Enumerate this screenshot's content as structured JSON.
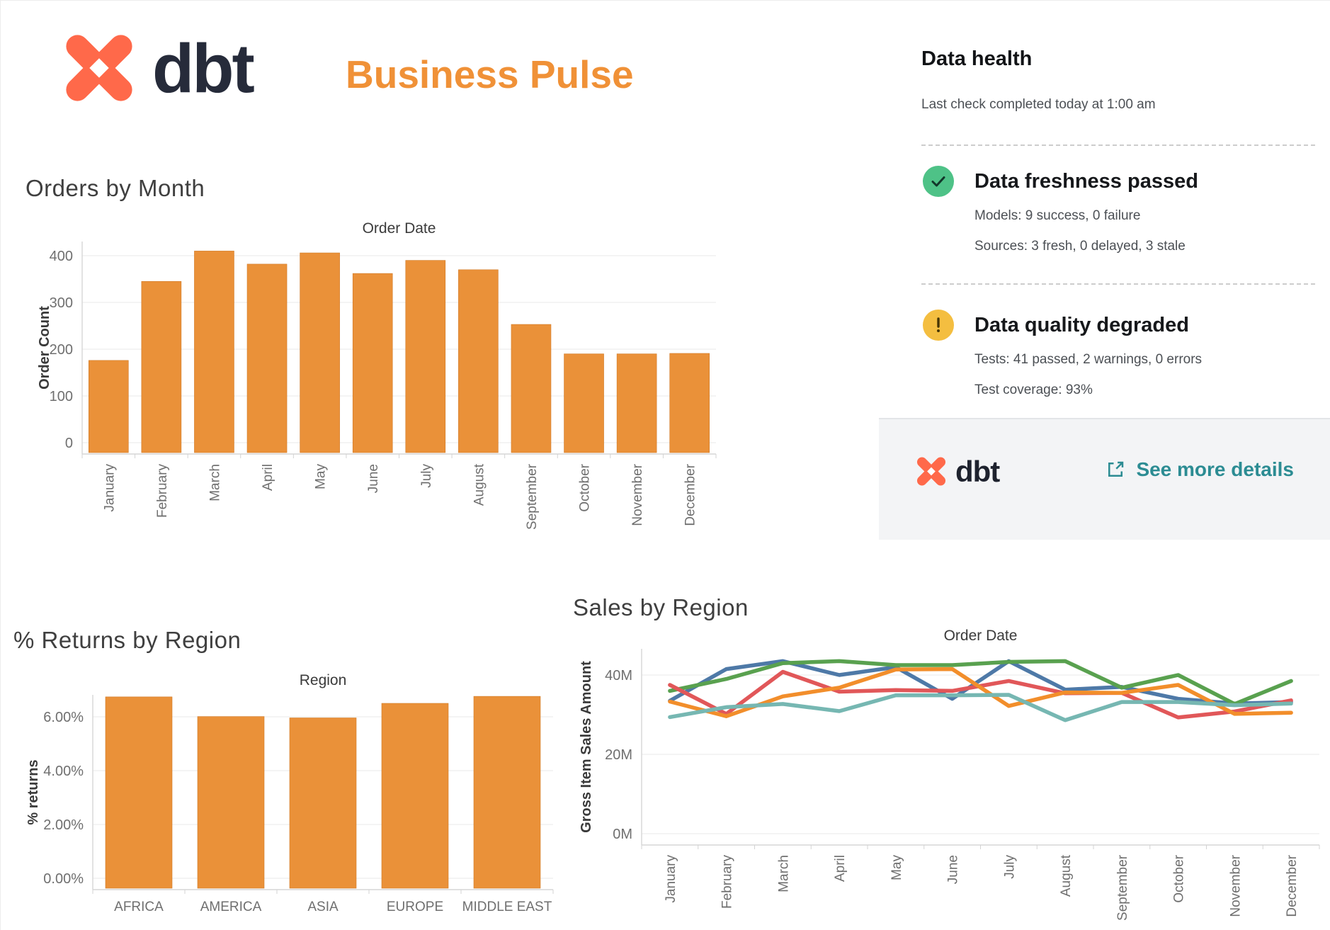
{
  "header": {
    "brand": "dbt",
    "title": "Business Pulse"
  },
  "data_health": {
    "title": "Data health",
    "subtitle": "Last check completed today at 1:00 am",
    "freshness": {
      "status": "passed",
      "title": "Data freshness passed",
      "lines": [
        "Models: 9 success, 0 failure",
        "Sources: 3 fresh, 0 delayed, 3 stale"
      ]
    },
    "quality": {
      "status": "warning",
      "title": "Data quality degraded",
      "lines": [
        "Tests: 41 passed, 2 warnings, 0 errors",
        "Test coverage: 93%"
      ]
    },
    "footer": {
      "brand": "dbt",
      "link_label": "See more details"
    }
  },
  "colors": {
    "brand_coral": "#FF694A",
    "title_orange": "#F09137",
    "bar_orange": "#EA9139",
    "link_teal": "#2C8C93",
    "status_green": "#4EC287",
    "status_yellow": "#F4BE40",
    "grid": "#e9e9e9",
    "axis": "#d6d6d6",
    "tick_text": "#6f6f6f",
    "axis_title": "#3a3a3a"
  },
  "chart_data": [
    {
      "id": "orders_by_month",
      "type": "bar",
      "title": "Orders by Month",
      "field_label": "Order Date",
      "ylabel": "Order Count",
      "categories": [
        "January",
        "February",
        "March",
        "April",
        "May",
        "June",
        "July",
        "August",
        "September",
        "October",
        "November",
        "December"
      ],
      "values": [
        176,
        345,
        410,
        382,
        406,
        362,
        390,
        370,
        253,
        190,
        190,
        191
      ],
      "y_tick_values": [
        0,
        100,
        200,
        300,
        400
      ],
      "y_tick_labels": [
        "0",
        "100",
        "200",
        "300",
        "400"
      ],
      "ylim": [
        0,
        425
      ],
      "bar_color": "#EA9139",
      "grid": true,
      "legend": "none"
    },
    {
      "id": "returns_by_region",
      "type": "bar",
      "title": "% Returns by Region",
      "field_label": "Region",
      "ylabel": "% returns",
      "categories": [
        "AFRICA",
        "AMERICA",
        "ASIA",
        "EUROPE",
        "MIDDLE EAST"
      ],
      "values": [
        6.74,
        6.01,
        5.96,
        6.5,
        6.76
      ],
      "y_tick_values": [
        0,
        2,
        4,
        6
      ],
      "y_tick_labels": [
        "0.00%",
        "2.00%",
        "4.00%",
        "6.00%"
      ],
      "ylim": [
        0,
        8
      ],
      "bar_color": "#EA9139",
      "grid": true,
      "legend": "none"
    },
    {
      "id": "sales_by_region",
      "type": "line",
      "title": "Sales by Region",
      "field_label": "Order Date",
      "ylabel": "Gross Item Sales Amount",
      "categories": [
        "January",
        "February",
        "March",
        "April",
        "May",
        "June",
        "July",
        "August",
        "September",
        "October",
        "November",
        "December"
      ],
      "series": [
        {
          "name": "blue",
          "color": "#4E79A7",
          "values": [
            33.5,
            41.5,
            43.5,
            40.0,
            42.0,
            34.0,
            43.5,
            36.3,
            37.0,
            34.0,
            32.8,
            33.2
          ]
        },
        {
          "name": "green",
          "color": "#59A14F",
          "values": [
            36.0,
            39.0,
            43.0,
            43.5,
            42.5,
            42.5,
            43.3,
            43.5,
            36.8,
            40.0,
            32.7,
            38.5
          ]
        },
        {
          "name": "red",
          "color": "#E15759",
          "values": [
            37.5,
            30.2,
            40.8,
            35.8,
            36.2,
            36.0,
            38.5,
            35.4,
            35.5,
            29.3,
            30.8,
            33.6
          ]
        },
        {
          "name": "orange",
          "color": "#F28E2B",
          "values": [
            33.3,
            29.6,
            34.6,
            36.8,
            41.4,
            41.5,
            32.2,
            35.6,
            35.5,
            37.5,
            30.2,
            30.5
          ]
        },
        {
          "name": "teal",
          "color": "#76B7B2",
          "values": [
            29.4,
            31.9,
            32.7,
            30.9,
            34.9,
            34.9,
            35.0,
            28.6,
            33.2,
            33.2,
            32.4,
            32.8
          ]
        }
      ],
      "y_tick_values": [
        0,
        20,
        40
      ],
      "y_tick_labels": [
        "0M",
        "20M",
        "40M"
      ],
      "ylim": [
        0,
        46
      ],
      "unit": "M",
      "grid": true,
      "legend": "none"
    }
  ]
}
